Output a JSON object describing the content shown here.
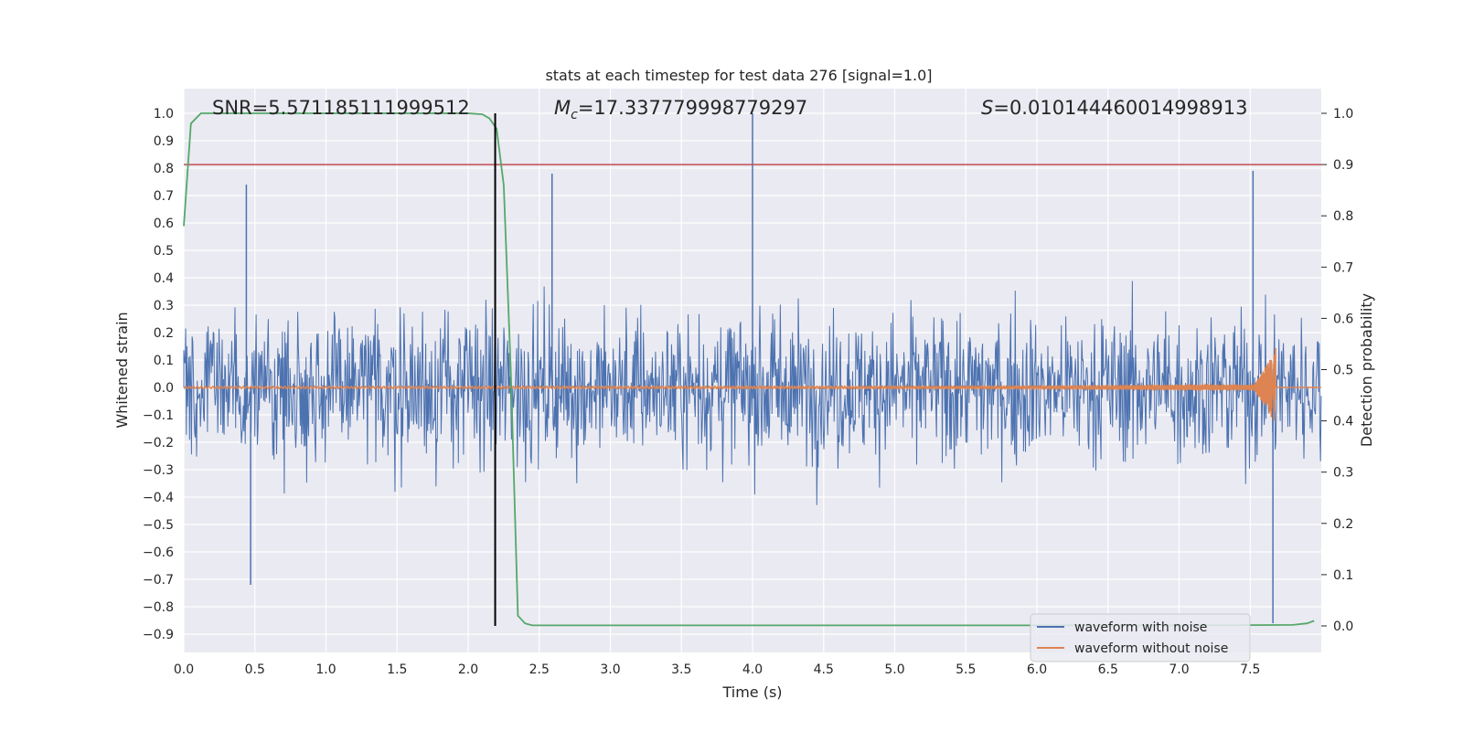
{
  "chart_data": {
    "type": "line",
    "title": "stats at each timestep for test data 276 [signal=1.0]",
    "xlabel": "Time (s)",
    "ylabel": "Whitened strain",
    "y2label": "Detection probability",
    "xlim": [
      0.0,
      8.0
    ],
    "ylim": [
      -0.96,
      1.09
    ],
    "y2lim": [
      -0.05,
      1.03
    ],
    "xticks": [
      "0.0",
      "0.5",
      "1.0",
      "1.5",
      "2.0",
      "2.5",
      "3.0",
      "3.5",
      "4.0",
      "4.5",
      "5.0",
      "5.5",
      "6.0",
      "6.5",
      "7.0",
      "7.5"
    ],
    "yticks": [
      "1.0",
      "0.9",
      "0.8",
      "0.7",
      "0.6",
      "0.5",
      "0.4",
      "0.3",
      "0.2",
      "0.1",
      "0.0",
      "-0.1",
      "-0.2",
      "-0.3",
      "-0.4",
      "-0.5",
      "-0.6",
      "-0.7",
      "-0.8",
      "-0.9"
    ],
    "y2ticks": [
      "1.0",
      "0.9",
      "0.8",
      "0.7",
      "0.6",
      "0.5",
      "0.4",
      "0.3",
      "0.2",
      "0.1",
      "0.0"
    ],
    "annotations": {
      "snr": "SNR=5.571185111999512",
      "mc_symbol": "M",
      "mc_sub": "c",
      "mc_value": "=17.337779998779297",
      "s_symbol": "S",
      "s_value": "=0.010144460014998913"
    },
    "colors": {
      "noise": "#4c72b0",
      "signal": "#dd8452",
      "probability": "#55a868",
      "threshold": "#c44e52",
      "marker": "#000000",
      "background": "#eaeaf2",
      "grid": "#ffffff"
    },
    "series": [
      {
        "name": "waveform with noise",
        "axis": "left",
        "description": "whitened strain noise, approx. range -0.72 to 0.79 with spikes; envelope extremes",
        "spikes": [
          [
            0.44,
            0.74
          ],
          [
            0.47,
            -0.72
          ],
          [
            2.59,
            0.78
          ],
          [
            4.0,
            1.0
          ],
          [
            7.52,
            0.79
          ],
          [
            7.66,
            -0.86
          ],
          [
            1.61,
            0.0
          ]
        ]
      },
      {
        "name": "waveform without noise",
        "axis": "left",
        "description": "chirp signal, amplitude grows to ~0.2 near merger at t=7.68 s",
        "merger_time": 7.68,
        "peak_amplitude": 0.2
      },
      {
        "name": "detection probability",
        "axis": "right",
        "x": [
          0.0,
          0.05,
          0.12,
          0.2,
          1.0,
          1.5,
          2.0,
          2.1,
          2.15,
          2.2,
          2.25,
          2.3,
          2.35,
          2.4,
          2.45,
          3.0,
          4.0,
          5.0,
          6.0,
          7.0,
          7.8,
          7.9,
          7.95
        ],
        "y": [
          0.78,
          0.98,
          1.0,
          1.0,
          1.0,
          1.0,
          1.0,
          0.998,
          0.99,
          0.97,
          0.86,
          0.5,
          0.02,
          0.005,
          0.001,
          0.001,
          0.001,
          0.001,
          0.001,
          0.001,
          0.002,
          0.005,
          0.01
        ]
      },
      {
        "name": "threshold",
        "axis": "right",
        "value": 0.9
      },
      {
        "name": "detection time",
        "axis": "left",
        "x": 2.19,
        "y_range": [
          -0.87,
          1.0
        ]
      }
    ],
    "legend": {
      "position": "bottom-right",
      "entries": [
        "waveform with noise",
        "waveform without noise"
      ]
    }
  }
}
